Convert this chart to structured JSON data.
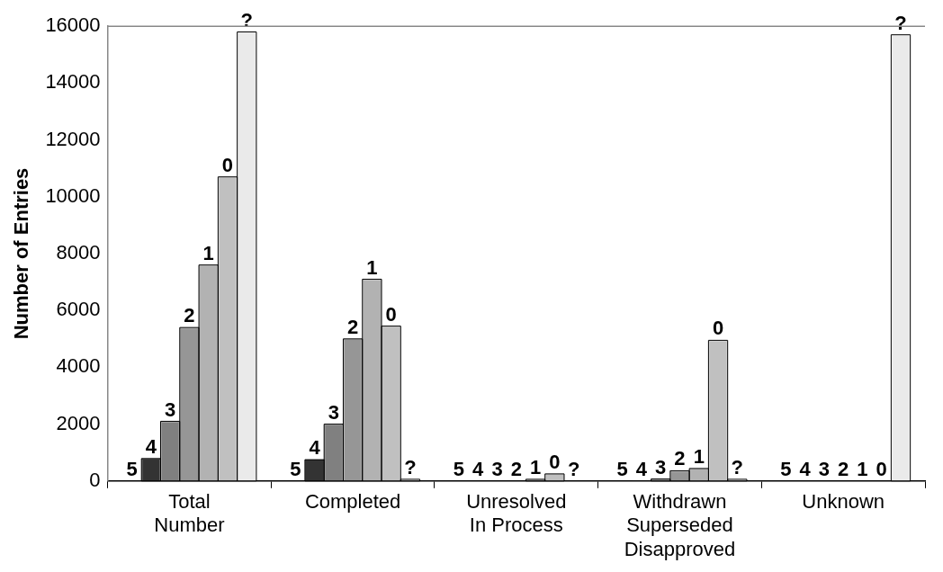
{
  "chart_data": {
    "type": "bar",
    "ylabel": "Number of Entries",
    "categories": [
      "Total\nNumber",
      "Completed",
      "Unresolved\nIn Process",
      "Withdrawn\nSuperseded\nDisapproved",
      "Unknown"
    ],
    "series": [
      {
        "name": "5",
        "color": "#111111",
        "values": [
          0,
          0,
          0,
          0,
          0
        ]
      },
      {
        "name": "4",
        "color": "#333333",
        "values": [
          790,
          750,
          0,
          10,
          0
        ]
      },
      {
        "name": "3",
        "color": "#808080",
        "values": [
          2100,
          2000,
          0,
          70,
          0
        ]
      },
      {
        "name": "2",
        "color": "#969696",
        "values": [
          5400,
          5000,
          0,
          360,
          0
        ]
      },
      {
        "name": "1",
        "color": "#b2b2b2",
        "values": [
          7600,
          7100,
          60,
          440,
          0
        ]
      },
      {
        "name": "0",
        "color": "#c0c0c0",
        "values": [
          10700,
          5450,
          250,
          4950,
          0
        ]
      },
      {
        "name": "?",
        "color": "#eaeaea",
        "values": [
          15800,
          60,
          0,
          60,
          15700
        ]
      }
    ],
    "ylim": [
      0,
      16000
    ],
    "yticks": [
      0,
      2000,
      4000,
      6000,
      8000,
      10000,
      12000,
      14000,
      16000
    ],
    "grid": false,
    "legend": false
  }
}
